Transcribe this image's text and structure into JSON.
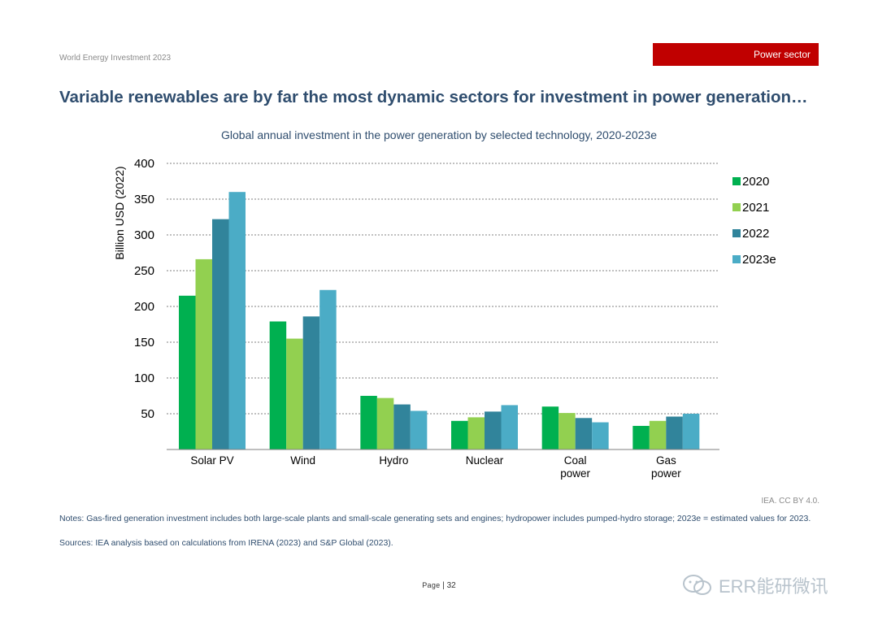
{
  "header": {
    "report_title": "World Energy Investment 2023",
    "section_tag": "Power sector",
    "section_tag_color": "#c00000"
  },
  "headline": "Variable renewables are by far the most dynamic sectors for investment in power generation…",
  "chart_data": {
    "type": "bar",
    "title": "Global annual investment in the power generation by selected technology, 2020-2023e",
    "ylabel": "Billion USD (2022)",
    "xlabel": "",
    "ylim": [
      0,
      400
    ],
    "yticks": [
      50,
      100,
      150,
      200,
      250,
      300,
      350,
      400
    ],
    "grid": true,
    "legend_position": "right",
    "categories": [
      [
        "Solar PV"
      ],
      [
        "Wind"
      ],
      [
        "Hydro"
      ],
      [
        "Nuclear"
      ],
      [
        "Coal",
        "power"
      ],
      [
        "Gas",
        "power"
      ]
    ],
    "series": [
      {
        "name": "2020",
        "color": "#00b050",
        "values": [
          215,
          179,
          75,
          40,
          60,
          33
        ]
      },
      {
        "name": "2021",
        "color": "#92d050",
        "values": [
          266,
          155,
          72,
          45,
          51,
          40
        ]
      },
      {
        "name": "2022",
        "color": "#31849b",
        "values": [
          322,
          186,
          63,
          53,
          44,
          46
        ]
      },
      {
        "name": "2023e",
        "color": "#4bacc6",
        "values": [
          360,
          223,
          54,
          62,
          38,
          50
        ]
      }
    ]
  },
  "credit": "IEA. CC BY 4.0.",
  "notes": "Notes: Gas-fired generation investment includes both large-scale plants and small-scale generating sets and engines; hydropower includes pumped-hydro storage; 2023e = estimated values for 2023.",
  "sources": "Sources: IEA analysis based on calculations from IRENA (2023) and S&P Global (2023).",
  "footer": {
    "page_label": "Page",
    "page_sep": " | ",
    "page_number": "32"
  },
  "watermark": {
    "text": "ERR能研微讯",
    "icon": "wechat-icon"
  }
}
